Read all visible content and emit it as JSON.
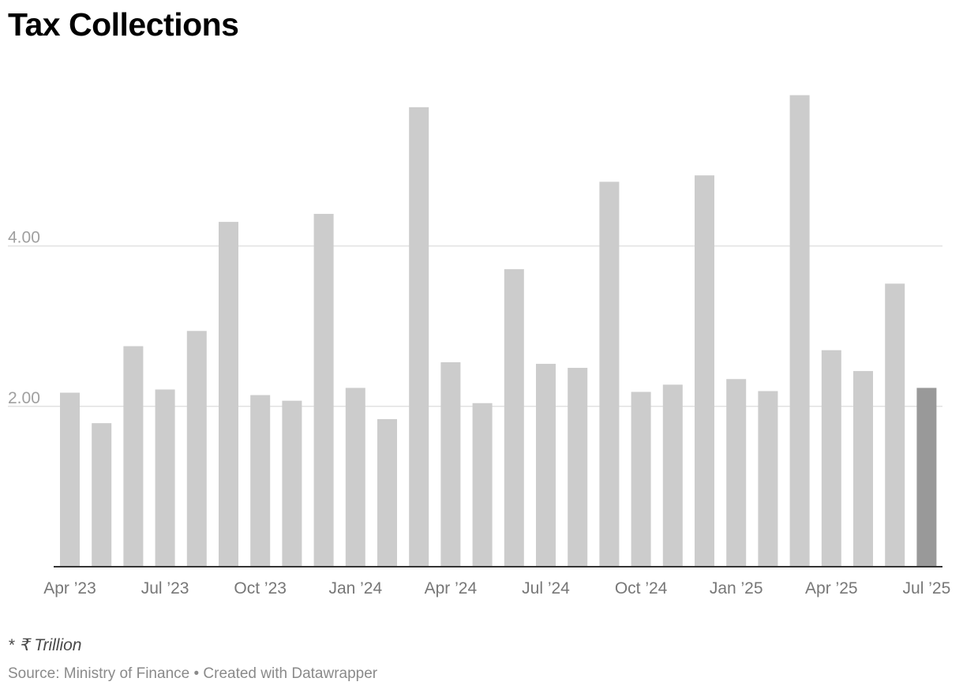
{
  "chart_data": {
    "type": "bar",
    "title": "Tax Collections",
    "xlabel": "",
    "ylabel": "",
    "ylim": [
      0,
      6
    ],
    "y_ticks": [
      2,
      4
    ],
    "y_tick_labels": [
      "2.00",
      "4.00"
    ],
    "categories": [
      "Apr 2023",
      "May 2023",
      "Jun 2023",
      "Jul 2023",
      "Aug 2023",
      "Sep 2023",
      "Oct 2023",
      "Nov 2023",
      "Dec 2023",
      "Jan 2024",
      "Feb 2024",
      "Mar 2024",
      "Apr 2024",
      "May 2024",
      "Jun 2024",
      "Jul 2024",
      "Aug 2024",
      "Sep 2024",
      "Oct 2024",
      "Nov 2024",
      "Dec 2024",
      "Jan 2025",
      "Feb 2025",
      "Mar 2025",
      "Apr 2025",
      "May 2025",
      "Jun 2025",
      "Jul 2025"
    ],
    "values": [
      2.17,
      1.79,
      2.75,
      2.21,
      2.94,
      4.3,
      2.14,
      2.07,
      4.4,
      2.23,
      1.84,
      5.73,
      2.55,
      2.04,
      3.71,
      2.53,
      2.48,
      4.8,
      2.18,
      2.27,
      4.88,
      2.34,
      2.19,
      5.88,
      2.7,
      2.44,
      3.53,
      2.23
    ],
    "x_tick_labels": [
      {
        "index": 0,
        "label": "Apr ’23"
      },
      {
        "index": 3,
        "label": "Jul ’23"
      },
      {
        "index": 6,
        "label": "Oct ’23"
      },
      {
        "index": 9,
        "label": "Jan ’24"
      },
      {
        "index": 12,
        "label": "Apr ’24"
      },
      {
        "index": 15,
        "label": "Jul ’24"
      },
      {
        "index": 18,
        "label": "Oct ’24"
      },
      {
        "index": 21,
        "label": "Jan ’25"
      },
      {
        "index": 24,
        "label": "Apr ’25"
      },
      {
        "index": 27,
        "label": "Jul ’25"
      }
    ],
    "highlight_index": 27,
    "grid": true,
    "legend": "none",
    "colors": {
      "bar": "#cccccc",
      "highlight": "#999999",
      "grid": "#e2e2e2",
      "baseline": "#333333"
    }
  },
  "footer": {
    "note": "* ₹ Trillion",
    "source": "Source: Ministry of Finance • Created with Datawrapper"
  }
}
